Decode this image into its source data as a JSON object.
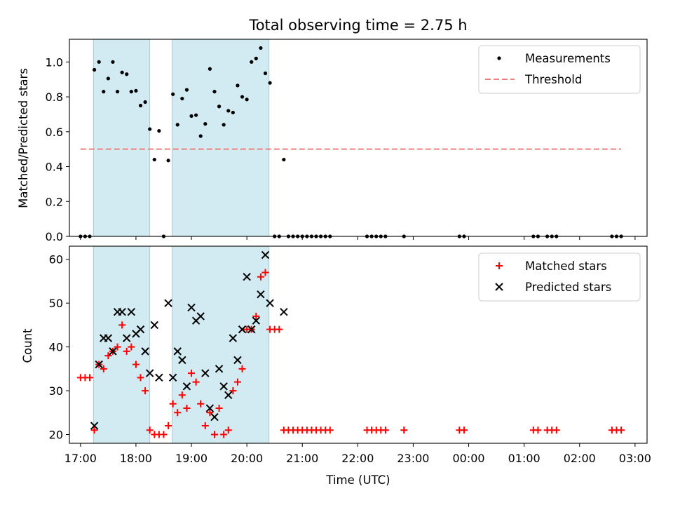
{
  "chart_data": [
    {
      "type": "scatter",
      "title": "Total observing time = 2.75 h",
      "ylabel": "Matched/Predicted stars",
      "xlabel": "",
      "xlim": [
        "16:48",
        "03:13"
      ],
      "ylim": [
        0,
        1.13
      ],
      "yticks": [
        "0.0",
        "0.2",
        "0.4",
        "0.6",
        "0.8",
        "1.0"
      ],
      "xticks": [
        "17:00",
        "18:00",
        "19:00",
        "20:00",
        "21:00",
        "22:00",
        "23:00",
        "00:00",
        "01:00",
        "02:00",
        "03:00"
      ],
      "xtick_labels_visible": false,
      "legend_position": "upper right",
      "shaded_intervals": [
        [
          "17:14",
          "18:15"
        ],
        [
          "18:39",
          "20:24"
        ]
      ],
      "shade_color": "#add8e6",
      "series": [
        {
          "name": "Measurements",
          "kind": "points",
          "color": "#000000",
          "points": [
            [
              "17:00",
              0.0
            ],
            [
              "17:05",
              0.0
            ],
            [
              "17:10",
              0.0
            ],
            [
              "17:15",
              0.955
            ],
            [
              "17:20",
              1.0
            ],
            [
              "17:25",
              0.83
            ],
            [
              "17:30",
              0.905
            ],
            [
              "17:35",
              1.0
            ],
            [
              "17:40",
              0.83
            ],
            [
              "17:45",
              0.94
            ],
            [
              "17:50",
              0.93
            ],
            [
              "17:55",
              0.83
            ],
            [
              "18:00",
              0.835
            ],
            [
              "18:05",
              0.75
            ],
            [
              "18:10",
              0.77
            ],
            [
              "18:15",
              0.615
            ],
            [
              "18:20",
              0.44
            ],
            [
              "18:25",
              0.605
            ],
            [
              "18:30",
              0.0
            ],
            [
              "18:35",
              0.435
            ],
            [
              "18:40",
              0.815
            ],
            [
              "18:45",
              0.64
            ],
            [
              "18:50",
              0.79
            ],
            [
              "18:55",
              0.84
            ],
            [
              "19:00",
              0.69
            ],
            [
              "19:05",
              0.695
            ],
            [
              "19:10",
              0.575
            ],
            [
              "19:15",
              0.645
            ],
            [
              "19:20",
              0.96
            ],
            [
              "19:25",
              0.83
            ],
            [
              "19:30",
              0.745
            ],
            [
              "19:35",
              0.64
            ],
            [
              "19:40",
              0.72
            ],
            [
              "19:45",
              0.71
            ],
            [
              "19:50",
              0.865
            ],
            [
              "19:55",
              0.8
            ],
            [
              "20:00",
              0.785
            ],
            [
              "20:05",
              1.0
            ],
            [
              "20:10",
              1.02
            ],
            [
              "20:15",
              1.08
            ],
            [
              "20:20",
              0.935
            ],
            [
              "20:25",
              0.88
            ],
            [
              "20:30",
              0.0
            ],
            [
              "20:35",
              0.0
            ],
            [
              "20:40",
              0.44
            ],
            [
              "20:45",
              0.0
            ],
            [
              "20:50",
              0.0
            ],
            [
              "20:55",
              0.0
            ],
            [
              "21:00",
              0.0
            ],
            [
              "21:05",
              0.0
            ],
            [
              "21:10",
              0.0
            ],
            [
              "21:15",
              0.0
            ],
            [
              "21:20",
              0.0
            ],
            [
              "21:25",
              0.0
            ],
            [
              "21:30",
              0.0
            ],
            [
              "22:10",
              0.0
            ],
            [
              "22:15",
              0.0
            ],
            [
              "22:20",
              0.0
            ],
            [
              "22:25",
              0.0
            ],
            [
              "22:30",
              0.0
            ],
            [
              "22:50",
              0.0
            ],
            [
              "23:50",
              0.0
            ],
            [
              "23:55",
              0.0
            ],
            [
              "01:10",
              0.0
            ],
            [
              "01:15",
              0.0
            ],
            [
              "01:25",
              0.0
            ],
            [
              "01:30",
              0.0
            ],
            [
              "01:35",
              0.0
            ],
            [
              "02:35",
              0.0
            ],
            [
              "02:40",
              0.0
            ],
            [
              "02:45",
              0.0
            ]
          ]
        },
        {
          "name": "Threshold",
          "kind": "dashed-line",
          "color": "#f08080",
          "points": [
            [
              "17:00",
              0.5
            ],
            [
              "02:45",
              0.5
            ]
          ]
        }
      ]
    },
    {
      "type": "scatter",
      "title": "",
      "ylabel": "Count",
      "xlabel": "Time (UTC)",
      "xlim": [
        "16:48",
        "03:13"
      ],
      "ylim": [
        18,
        63
      ],
      "yticks": [
        "20",
        "30",
        "40",
        "50",
        "60"
      ],
      "xticks": [
        "17:00",
        "18:00",
        "19:00",
        "20:00",
        "21:00",
        "22:00",
        "23:00",
        "00:00",
        "01:00",
        "02:00",
        "03:00"
      ],
      "legend_position": "upper right",
      "shaded_intervals": [
        [
          "17:14",
          "18:15"
        ],
        [
          "18:39",
          "20:24"
        ]
      ],
      "shade_color": "#add8e6",
      "series": [
        {
          "name": "Matched stars",
          "kind": "plus",
          "color": "#ff0000",
          "points": [
            [
              "17:00",
              33
            ],
            [
              "17:05",
              33
            ],
            [
              "17:10",
              33
            ],
            [
              "17:15",
              21
            ],
            [
              "17:20",
              36
            ],
            [
              "17:25",
              35
            ],
            [
              "17:30",
              38
            ],
            [
              "17:35",
              39
            ],
            [
              "17:40",
              40
            ],
            [
              "17:45",
              45
            ],
            [
              "17:50",
              39
            ],
            [
              "17:55",
              40
            ],
            [
              "18:00",
              36
            ],
            [
              "18:05",
              33
            ],
            [
              "18:10",
              30
            ],
            [
              "18:15",
              21
            ],
            [
              "18:20",
              20
            ],
            [
              "18:25",
              20
            ],
            [
              "18:30",
              20
            ],
            [
              "18:35",
              22
            ],
            [
              "18:40",
              27
            ],
            [
              "18:45",
              25
            ],
            [
              "18:50",
              29
            ],
            [
              "18:55",
              26
            ],
            [
              "19:00",
              34
            ],
            [
              "19:05",
              32
            ],
            [
              "19:10",
              27
            ],
            [
              "19:15",
              22
            ],
            [
              "19:20",
              25
            ],
            [
              "19:25",
              20
            ],
            [
              "19:30",
              26
            ],
            [
              "19:35",
              20
            ],
            [
              "19:40",
              21
            ],
            [
              "19:45",
              30
            ],
            [
              "19:50",
              32
            ],
            [
              "19:55",
              35
            ],
            [
              "20:00",
              44
            ],
            [
              "20:05",
              44
            ],
            [
              "20:10",
              47
            ],
            [
              "20:15",
              56
            ],
            [
              "20:20",
              57
            ],
            [
              "20:25",
              44
            ],
            [
              "20:30",
              44
            ],
            [
              "20:35",
              44
            ],
            [
              "20:40",
              21
            ],
            [
              "20:45",
              21
            ],
            [
              "20:50",
              21
            ],
            [
              "20:55",
              21
            ],
            [
              "21:00",
              21
            ],
            [
              "21:05",
              21
            ],
            [
              "21:10",
              21
            ],
            [
              "21:15",
              21
            ],
            [
              "21:20",
              21
            ],
            [
              "21:25",
              21
            ],
            [
              "21:30",
              21
            ],
            [
              "22:10",
              21
            ],
            [
              "22:15",
              21
            ],
            [
              "22:20",
              21
            ],
            [
              "22:25",
              21
            ],
            [
              "22:30",
              21
            ],
            [
              "22:50",
              21
            ],
            [
              "23:50",
              21
            ],
            [
              "23:55",
              21
            ],
            [
              "01:10",
              21
            ],
            [
              "01:15",
              21
            ],
            [
              "01:25",
              21
            ],
            [
              "01:30",
              21
            ],
            [
              "01:35",
              21
            ],
            [
              "02:35",
              21
            ],
            [
              "02:40",
              21
            ],
            [
              "02:45",
              21
            ]
          ]
        },
        {
          "name": "Predicted stars",
          "kind": "x",
          "color": "#000000",
          "points": [
            [
              "17:15",
              22
            ],
            [
              "17:20",
              36
            ],
            [
              "17:25",
              42
            ],
            [
              "17:30",
              42
            ],
            [
              "17:35",
              39
            ],
            [
              "17:40",
              48
            ],
            [
              "17:45",
              48
            ],
            [
              "17:50",
              42
            ],
            [
              "17:55",
              48
            ],
            [
              "18:00",
              43
            ],
            [
              "18:05",
              44
            ],
            [
              "18:10",
              39
            ],
            [
              "18:15",
              34
            ],
            [
              "18:20",
              45
            ],
            [
              "18:25",
              33
            ],
            [
              "18:35",
              50
            ],
            [
              "18:40",
              33
            ],
            [
              "18:45",
              39
            ],
            [
              "18:50",
              37
            ],
            [
              "18:55",
              31
            ],
            [
              "19:00",
              49
            ],
            [
              "19:05",
              46
            ],
            [
              "19:10",
              47
            ],
            [
              "19:15",
              34
            ],
            [
              "19:20",
              26
            ],
            [
              "19:25",
              24
            ],
            [
              "19:30",
              35
            ],
            [
              "19:35",
              31
            ],
            [
              "19:40",
              29
            ],
            [
              "19:45",
              42
            ],
            [
              "19:50",
              37
            ],
            [
              "19:55",
              44
            ],
            [
              "20:00",
              56
            ],
            [
              "20:05",
              44
            ],
            [
              "20:10",
              46
            ],
            [
              "20:15",
              52
            ],
            [
              "20:20",
              61
            ],
            [
              "20:25",
              50
            ],
            [
              "20:40",
              48
            ]
          ]
        }
      ]
    }
  ]
}
